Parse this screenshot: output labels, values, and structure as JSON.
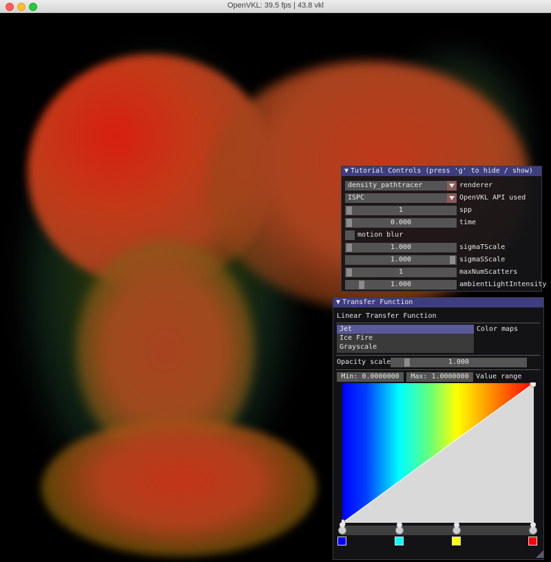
{
  "window": {
    "title": "OpenVKL: 39.5 fps | 43.8 vkl"
  },
  "tutorial_controls": {
    "title": "Tutorial Controls (press 'g' to hide / show)",
    "rows": [
      {
        "kind": "combo",
        "value": "density_pathtracer",
        "label": "renderer"
      },
      {
        "kind": "combo",
        "value": "ISPC",
        "label": "OpenVKL API used"
      },
      {
        "kind": "slider",
        "value": "1",
        "label": "spp",
        "level": 0.0
      },
      {
        "kind": "slider",
        "value": "0.000",
        "label": "time",
        "level": 0.0
      },
      {
        "kind": "checkbox",
        "label": "motion blur",
        "checked": false
      },
      {
        "kind": "slider",
        "value": "1.000",
        "label": "sigmaTScale",
        "level": 0.0
      },
      {
        "kind": "slider",
        "value": "1.000",
        "label": "sigmaSScale",
        "level": 1.0
      },
      {
        "kind": "slider",
        "value": "1",
        "label": "maxNumScatters",
        "level": 0.0
      },
      {
        "kind": "slider",
        "value": "1.000",
        "label": "ambientLightIntensity",
        "level": 0.05
      }
    ]
  },
  "transfer_function": {
    "title": "Transfer Function",
    "subtitle": "Linear Transfer Function",
    "color_maps_label": "Color maps",
    "color_maps": [
      "Jet",
      "Ice Fire",
      "Grayscale"
    ],
    "selected_map": "Jet",
    "opacity_label": "Opacity scale",
    "opacity_value": "1.000",
    "opacity_level": 0.2,
    "min_text": "Min: 0.0000000",
    "max_text": "Max: 1.0000000",
    "value_range_label": "Value range",
    "opacity_points": [
      [
        0.0,
        0.0
      ],
      [
        1.0,
        1.0
      ]
    ],
    "color_points": [
      {
        "pos": 0.0,
        "color": "#0000ff"
      },
      {
        "pos": 0.3,
        "color": "#00ffff"
      },
      {
        "pos": 0.6,
        "color": "#ffff00"
      },
      {
        "pos": 1.0,
        "color": "#ff0000"
      }
    ]
  }
}
